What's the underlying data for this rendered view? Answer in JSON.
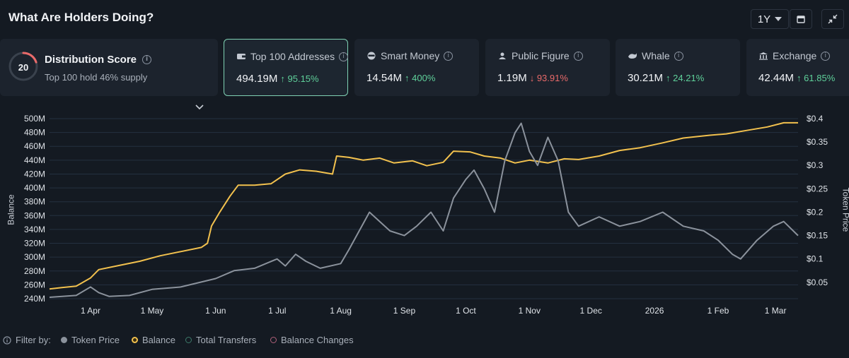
{
  "header": {
    "title": "What Are Holders Doing?",
    "range": "1Y"
  },
  "distribution": {
    "score": "20",
    "title": "Distribution Score",
    "subtitle": "Top 100 hold 46% supply",
    "score_color": "#e96a6a"
  },
  "cards": [
    {
      "label": "Top 100 Addresses",
      "value": "494.19M",
      "change": "95.15%",
      "dir": "up",
      "icon": "wallet-icon"
    },
    {
      "label": "Smart Money",
      "value": "14.54M",
      "change": "400%",
      "dir": "up",
      "icon": "sunglasses-icon"
    },
    {
      "label": "Public Figure",
      "value": "1.19M",
      "change": "93.91%",
      "dir": "down",
      "icon": "person-icon"
    },
    {
      "label": "Whale",
      "value": "30.21M",
      "change": "24.21%",
      "dir": "up",
      "icon": "whale-icon"
    },
    {
      "label": "Exchange",
      "value": "42.44M",
      "change": "61.85%",
      "dir": "up",
      "icon": "bank-icon"
    }
  ],
  "legend": {
    "filter_label": "Filter by:",
    "items": [
      {
        "label": "Token Price",
        "color": "#8b929c",
        "filled": true
      },
      {
        "label": "Balance",
        "color": "#f2c14e",
        "filled": false
      },
      {
        "label": "Total Transfers",
        "color": "#3d7a6a",
        "filled": false
      },
      {
        "label": "Balance Changes",
        "color": "#b0607a",
        "filled": false
      }
    ]
  },
  "chart_data": {
    "type": "line",
    "xlabel": "",
    "ylabel_left": "Balance",
    "ylabel_right": "Token Price",
    "x_range": [
      "2025-03-12",
      "2026-03-12"
    ],
    "x_ticks": [
      {
        "date": "2025-04-01",
        "label": "1 Apr"
      },
      {
        "date": "2025-05-01",
        "label": "1 May"
      },
      {
        "date": "2025-06-01",
        "label": "1 Jun"
      },
      {
        "date": "2025-07-01",
        "label": "1 Jul"
      },
      {
        "date": "2025-08-01",
        "label": "1 Aug"
      },
      {
        "date": "2025-09-01",
        "label": "1 Sep"
      },
      {
        "date": "2025-10-01",
        "label": "1 Oct"
      },
      {
        "date": "2025-11-01",
        "label": "1 Nov"
      },
      {
        "date": "2025-12-01",
        "label": "1 Dec"
      },
      {
        "date": "2026-01-01",
        "label": "2026"
      },
      {
        "date": "2026-02-01",
        "label": "1 Feb"
      },
      {
        "date": "2026-03-01",
        "label": "1 Mar"
      }
    ],
    "y_left": {
      "min": 240,
      "max": 500,
      "ticks": [
        "240M",
        "260M",
        "280M",
        "300M",
        "320M",
        "340M",
        "360M",
        "380M",
        "400M",
        "420M",
        "440M",
        "460M",
        "480M",
        "500M"
      ],
      "tick_values": [
        240,
        260,
        280,
        300,
        320,
        340,
        360,
        380,
        400,
        420,
        440,
        460,
        480,
        500
      ]
    },
    "y_right": {
      "min": 0.015,
      "max": 0.4,
      "ticks": [
        "$0.05",
        "$0.1",
        "$0.15",
        "$0.2",
        "$0.25",
        "$0.3",
        "$0.35",
        "$0.4"
      ],
      "tick_values": [
        0.05,
        0.1,
        0.15,
        0.2,
        0.25,
        0.3,
        0.35,
        0.4
      ]
    },
    "grid": true,
    "series": [
      {
        "name": "Balance",
        "axis": "left",
        "color": "#f2c14e",
        "points": [
          [
            "2025-03-12",
            254
          ],
          [
            "2025-03-18",
            256
          ],
          [
            "2025-03-25",
            258
          ],
          [
            "2025-04-01",
            270
          ],
          [
            "2025-04-05",
            282
          ],
          [
            "2025-04-15",
            288
          ],
          [
            "2025-04-25",
            294
          ],
          [
            "2025-05-05",
            302
          ],
          [
            "2025-05-15",
            308
          ],
          [
            "2025-05-25",
            314
          ],
          [
            "2025-05-28",
            320
          ],
          [
            "2025-05-30",
            345
          ],
          [
            "2025-06-03",
            365
          ],
          [
            "2025-06-08",
            388
          ],
          [
            "2025-06-12",
            404
          ],
          [
            "2025-06-20",
            404
          ],
          [
            "2025-06-28",
            406
          ],
          [
            "2025-07-05",
            420
          ],
          [
            "2025-07-12",
            426
          ],
          [
            "2025-07-20",
            424
          ],
          [
            "2025-07-28",
            420
          ],
          [
            "2025-07-30",
            446
          ],
          [
            "2025-08-05",
            444
          ],
          [
            "2025-08-12",
            440
          ],
          [
            "2025-08-20",
            443
          ],
          [
            "2025-08-27",
            436
          ],
          [
            "2025-09-05",
            439
          ],
          [
            "2025-09-12",
            432
          ],
          [
            "2025-09-20",
            437
          ],
          [
            "2025-09-25",
            453
          ],
          [
            "2025-10-03",
            452
          ],
          [
            "2025-10-10",
            446
          ],
          [
            "2025-10-18",
            443
          ],
          [
            "2025-10-25",
            436
          ],
          [
            "2025-11-01",
            440
          ],
          [
            "2025-11-10",
            436
          ],
          [
            "2025-11-18",
            442
          ],
          [
            "2025-11-25",
            441
          ],
          [
            "2025-12-05",
            446
          ],
          [
            "2025-12-15",
            454
          ],
          [
            "2025-12-25",
            458
          ],
          [
            "2026-01-05",
            465
          ],
          [
            "2026-01-15",
            472
          ],
          [
            "2026-01-28",
            476
          ],
          [
            "2026-02-05",
            478
          ],
          [
            "2026-02-15",
            483
          ],
          [
            "2026-02-25",
            488
          ],
          [
            "2026-03-05",
            494
          ],
          [
            "2026-03-12",
            494
          ]
        ]
      },
      {
        "name": "Token Price",
        "axis": "right",
        "color": "#8b929c",
        "points": [
          [
            "2025-03-12",
            0.018
          ],
          [
            "2025-03-25",
            0.022
          ],
          [
            "2025-04-01",
            0.04
          ],
          [
            "2025-04-05",
            0.028
          ],
          [
            "2025-04-10",
            0.02
          ],
          [
            "2025-04-20",
            0.022
          ],
          [
            "2025-05-01",
            0.035
          ],
          [
            "2025-05-15",
            0.04
          ],
          [
            "2025-06-01",
            0.058
          ],
          [
            "2025-06-10",
            0.075
          ],
          [
            "2025-06-20",
            0.08
          ],
          [
            "2025-07-01",
            0.1
          ],
          [
            "2025-07-05",
            0.085
          ],
          [
            "2025-07-10",
            0.11
          ],
          [
            "2025-07-15",
            0.095
          ],
          [
            "2025-07-22",
            0.08
          ],
          [
            "2025-08-01",
            0.09
          ],
          [
            "2025-08-05",
            0.12
          ],
          [
            "2025-08-10",
            0.16
          ],
          [
            "2025-08-15",
            0.2
          ],
          [
            "2025-08-20",
            0.18
          ],
          [
            "2025-08-25",
            0.16
          ],
          [
            "2025-09-01",
            0.15
          ],
          [
            "2025-09-07",
            0.17
          ],
          [
            "2025-09-14",
            0.2
          ],
          [
            "2025-09-20",
            0.16
          ],
          [
            "2025-09-25",
            0.23
          ],
          [
            "2025-10-01",
            0.27
          ],
          [
            "2025-10-05",
            0.29
          ],
          [
            "2025-10-10",
            0.25
          ],
          [
            "2025-10-15",
            0.2
          ],
          [
            "2025-10-20",
            0.31
          ],
          [
            "2025-10-25",
            0.37
          ],
          [
            "2025-10-28",
            0.39
          ],
          [
            "2025-11-01",
            0.33
          ],
          [
            "2025-11-05",
            0.3
          ],
          [
            "2025-11-10",
            0.36
          ],
          [
            "2025-11-15",
            0.31
          ],
          [
            "2025-11-20",
            0.2
          ],
          [
            "2025-11-25",
            0.17
          ],
          [
            "2025-12-05",
            0.19
          ],
          [
            "2025-12-15",
            0.17
          ],
          [
            "2025-12-25",
            0.18
          ],
          [
            "2026-01-05",
            0.2
          ],
          [
            "2026-01-15",
            0.17
          ],
          [
            "2026-01-25",
            0.16
          ],
          [
            "2026-02-01",
            0.14
          ],
          [
            "2026-02-08",
            0.11
          ],
          [
            "2026-02-12",
            0.1
          ],
          [
            "2026-02-20",
            0.14
          ],
          [
            "2026-02-28",
            0.17
          ],
          [
            "2026-03-05",
            0.18
          ],
          [
            "2026-03-12",
            0.15
          ]
        ]
      }
    ]
  }
}
